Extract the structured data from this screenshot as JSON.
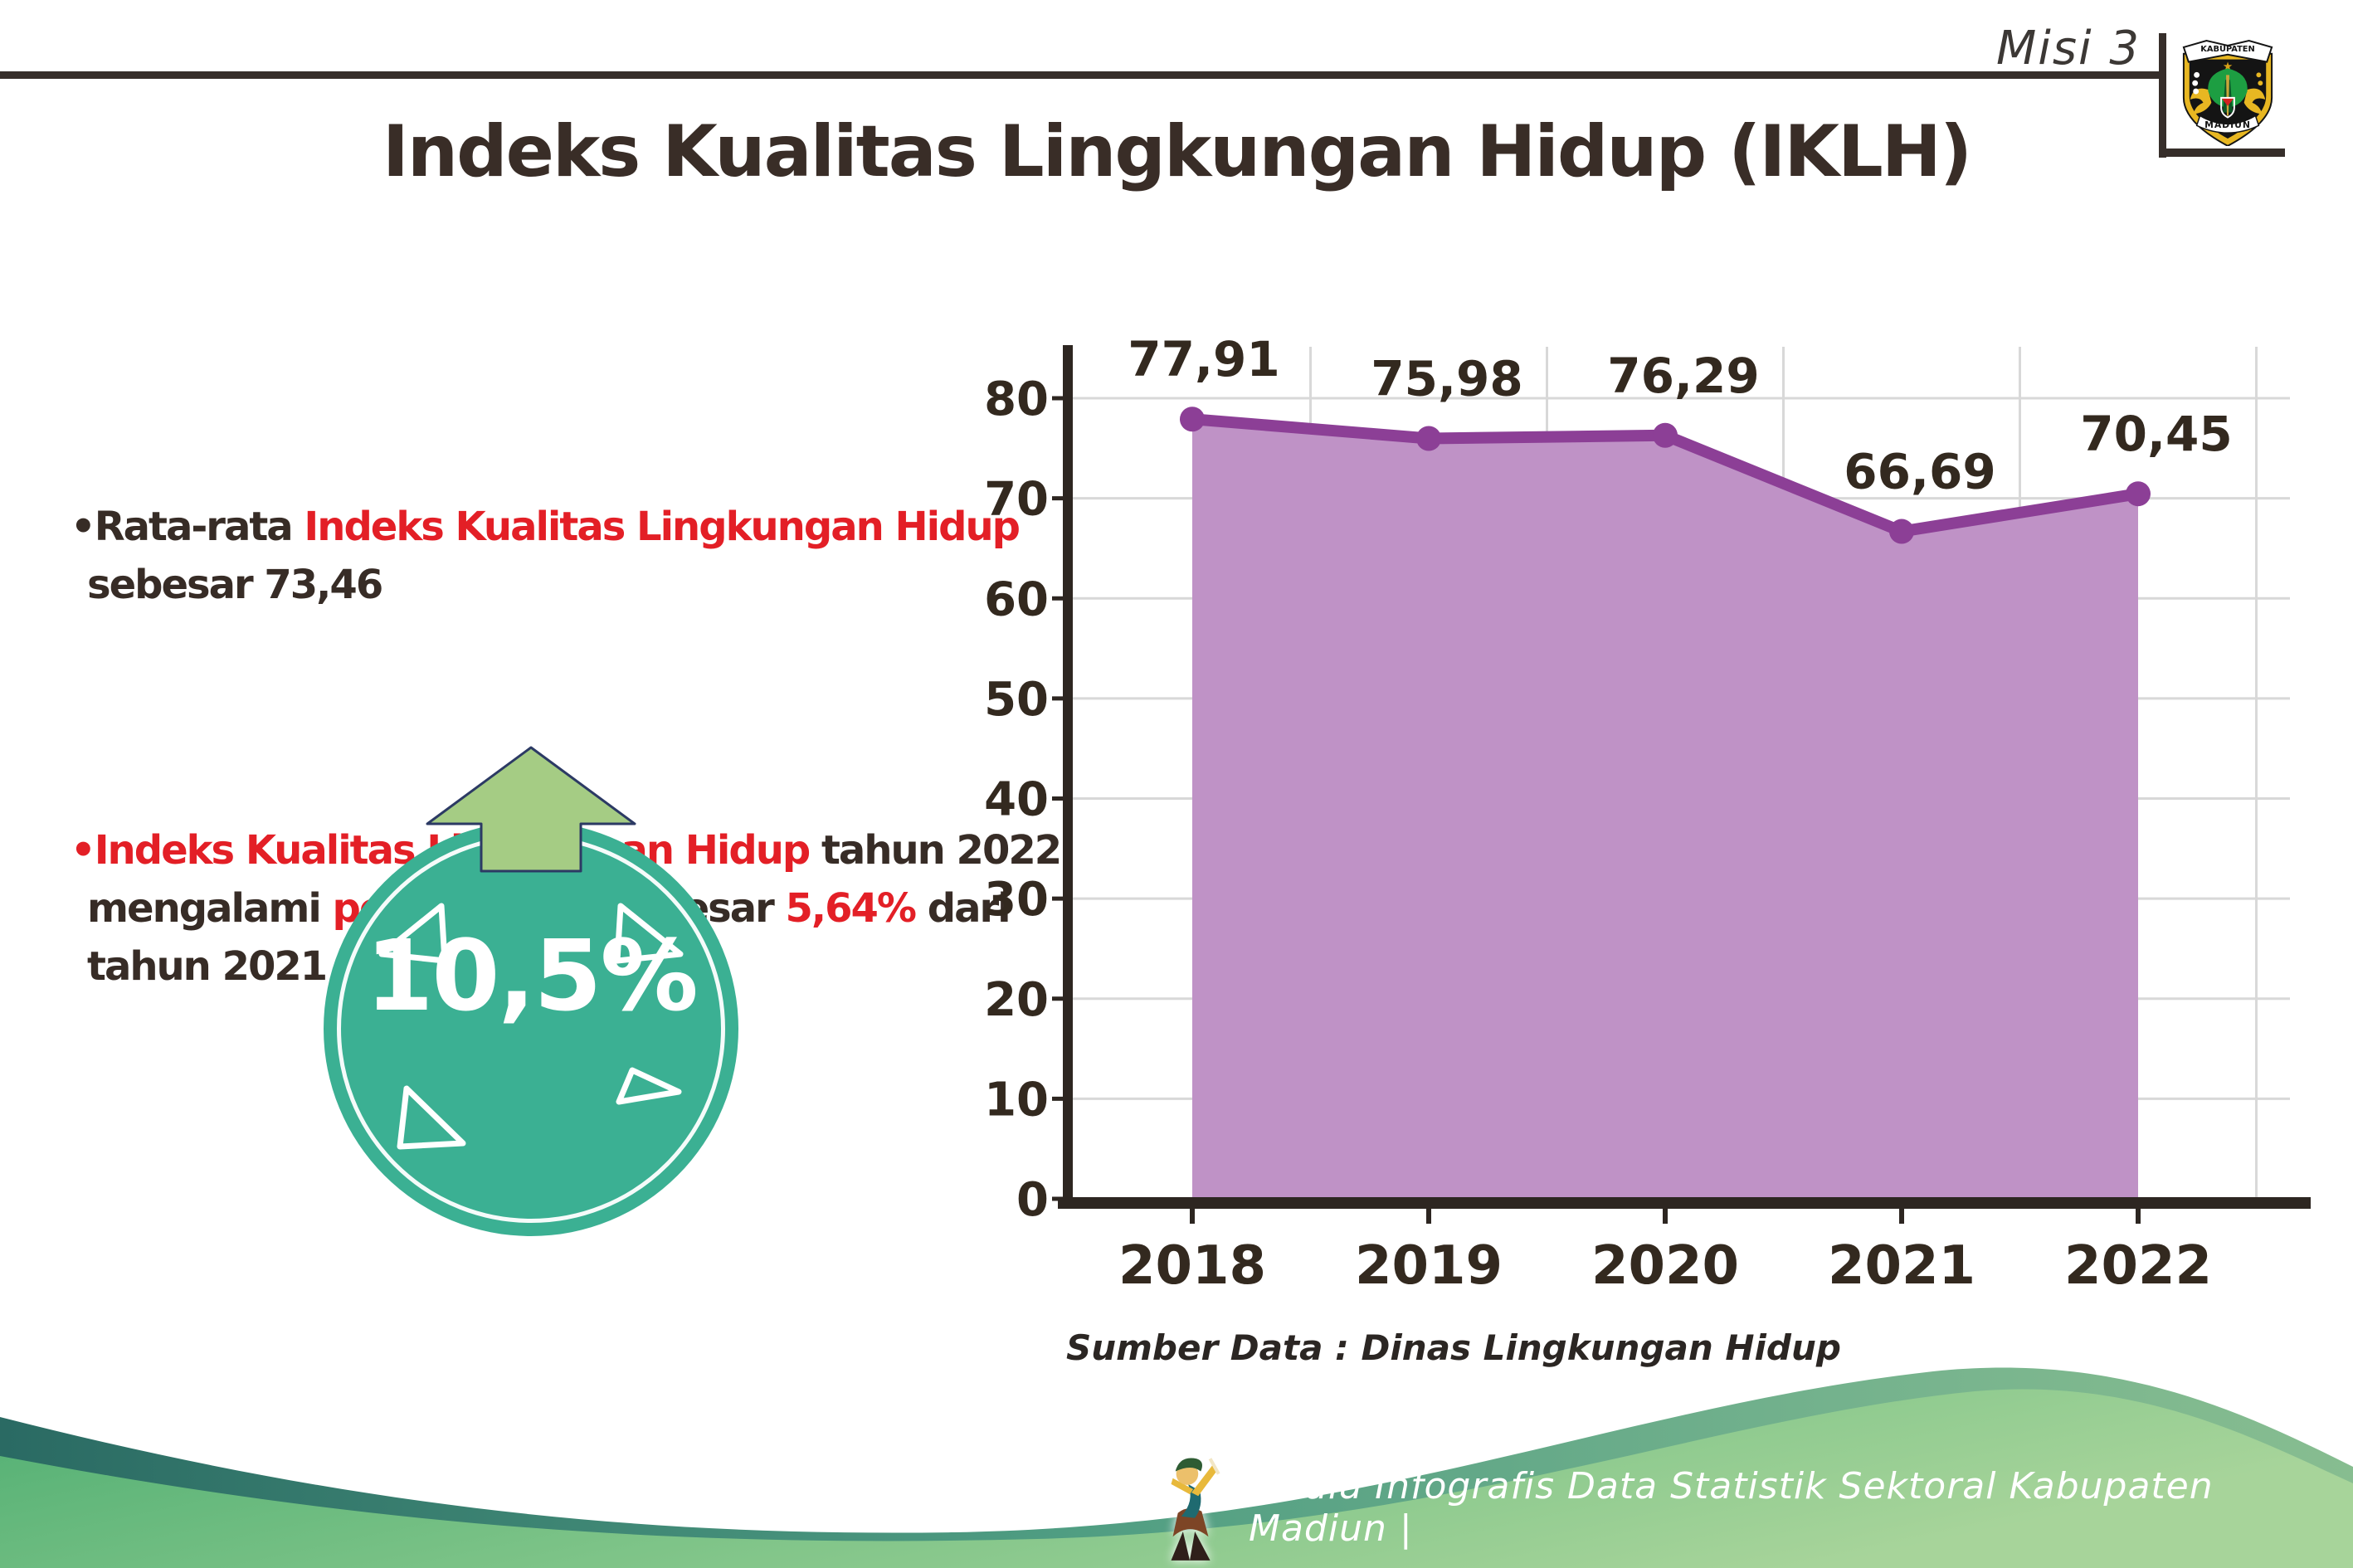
{
  "header": {
    "misi": "Misi 3",
    "title": "Indeks Kualitas Lingkungan Hidup (IKLH)",
    "logo_top": "KABUPATEN",
    "logo_bottom": "MADIUN"
  },
  "bullets": {
    "dot": "•",
    "b1": {
      "dark1": "Rata-rata ",
      "red1": "Indeks Kualitas Lingkungan Hidup",
      "dark2": "sebesar 73,46"
    },
    "b2": {
      "red1": "Indeks Kualitas Lingkungan Hidup",
      "dark1": " tahun 2022",
      "dark2": "mengalami ",
      "red2": "peningkatan",
      "dark3": " sebesar ",
      "red3": "5,64%",
      "dark4": " dari",
      "dark5": "tahun 2021"
    }
  },
  "badge": {
    "value": "10,5%"
  },
  "chart_data": {
    "type": "area",
    "categories": [
      "2018",
      "2019",
      "2020",
      "2021",
      "2022"
    ],
    "series": [
      {
        "name": "IKLH",
        "values": [
          77.91,
          75.98,
          76.29,
          66.69,
          70.45
        ]
      }
    ],
    "data_labels": [
      "77,91",
      "75,98",
      "76,29",
      "66,69",
      "70,45"
    ],
    "yticks": [
      0,
      10,
      20,
      30,
      40,
      50,
      60,
      70,
      80
    ],
    "ylim": [
      0,
      85
    ],
    "grid": true,
    "legend": false,
    "line_color": "#8c3f96",
    "fill_color": "#bf92c6",
    "source_note": "Sumber Data : Dinas Lingkungan Hidup"
  },
  "footer": {
    "credit": "Media Infografis Data Statistik Sektoral Kabupaten Madiun |"
  },
  "colors": {
    "red_text": "#e31f26",
    "dark_text": "#372c26",
    "badge_teal": "#3bb093",
    "arrow_green": "#a5cc84",
    "axis_dark": "#2d2621",
    "footer_teal": "#2a6a63",
    "footer_green": "#4fae72"
  }
}
